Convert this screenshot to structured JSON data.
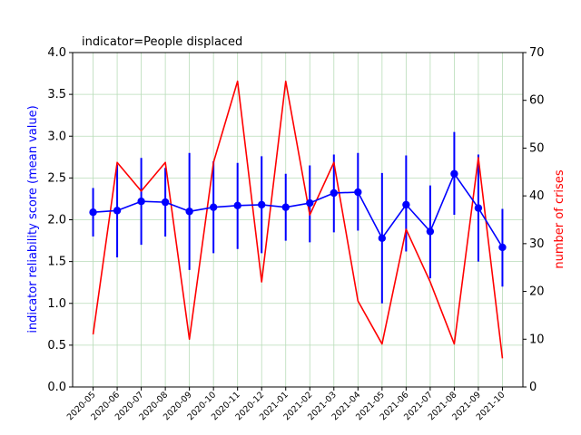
{
  "chart_data": {
    "type": "line",
    "title": "indicator=People displaced",
    "categories": [
      "2020-05",
      "2020-06",
      "2020-07",
      "2020-08",
      "2020-09",
      "2020-10",
      "2020-11",
      "2020-12",
      "2021-01",
      "2021-02",
      "2021-03",
      "2021-04",
      "2021-05",
      "2021-06",
      "2021-07",
      "2021-08",
      "2021-09",
      "2021-10"
    ],
    "ylabel_left": "indicator reliability score (mean value)",
    "ylabel_right": "number of crises",
    "ylim_left": [
      0,
      4.0
    ],
    "ylim_right": [
      0,
      70
    ],
    "yticks_left": [
      "0.0",
      "0.5",
      "1.0",
      "1.5",
      "2.0",
      "2.5",
      "3.0",
      "3.5",
      "4.0"
    ],
    "yticks_right": [
      "0",
      "10",
      "20",
      "30",
      "40",
      "50",
      "60",
      "70"
    ],
    "grid": true,
    "series": [
      {
        "axis": "left",
        "color": "#0000ff",
        "marker": "circle",
        "values": [
          2.09,
          2.11,
          2.22,
          2.21,
          2.1,
          2.15,
          2.17,
          2.18,
          2.15,
          2.2,
          2.32,
          2.33,
          1.78,
          2.18,
          1.86,
          2.55,
          2.14,
          1.67
        ],
        "error_low": [
          1.8,
          1.55,
          1.7,
          1.8,
          1.4,
          1.6,
          1.65,
          1.6,
          1.75,
          1.73,
          1.85,
          1.87,
          1.0,
          1.62,
          1.3,
          2.06,
          1.5,
          1.2
        ],
        "error_high": [
          2.38,
          2.66,
          2.74,
          2.62,
          2.8,
          2.7,
          2.68,
          2.76,
          2.55,
          2.65,
          2.78,
          2.8,
          2.56,
          2.77,
          2.41,
          3.05,
          2.78,
          2.13
        ]
      },
      {
        "axis": "right",
        "color": "#ff0000",
        "values": [
          11,
          47,
          41,
          47,
          10,
          47,
          64,
          22,
          64,
          36,
          47,
          18,
          9,
          33,
          22,
          9,
          48,
          6
        ]
      }
    ]
  }
}
